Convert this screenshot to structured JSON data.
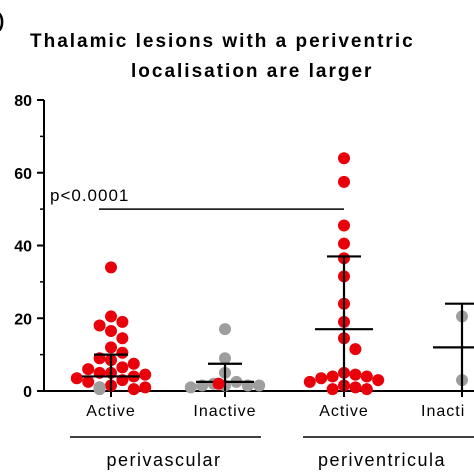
{
  "chart_data": {
    "type": "scatter",
    "panel_label": ")",
    "title_lines": [
      "Thalamic lesions with a periventric",
      "localisation are larger"
    ],
    "ylim": [
      0,
      80
    ],
    "yticks": [
      0,
      20,
      40,
      60,
      80
    ],
    "categories": [
      "Active",
      "Inactive",
      "Active",
      "Inacti"
    ],
    "groups": [
      {
        "label": "perivascular",
        "span": [
          0,
          1
        ]
      },
      {
        "label": "periventricula",
        "span": [
          2,
          3
        ]
      }
    ],
    "annotation": {
      "text": "p<0.0001",
      "from": 0,
      "to": 2,
      "y": 50
    },
    "colors": {
      "active": "#e8000b",
      "inactive": "#9e9e9e",
      "axis": "#000000"
    },
    "series": [
      {
        "category": 0,
        "color_key": "active",
        "mean": 4,
        "upper": 10,
        "lower": 0,
        "points": [
          34,
          20.5,
          19,
          18,
          16.5,
          14.5,
          12,
          10.5,
          9,
          8.5,
          7.5,
          6.5,
          6,
          5,
          5,
          4.5,
          4,
          3.5,
          3,
          2.5,
          2,
          1.5,
          1,
          1,
          1,
          0.5,
          0.5,
          0.5,
          0.5,
          0.5,
          0.5,
          0.5
        ]
      },
      {
        "category": 1,
        "color_key": "inactive",
        "mean": 2.5,
        "upper": 7.5,
        "lower": 0,
        "points": [
          17,
          9,
          5,
          2.5,
          2,
          1.5,
          1.5,
          1.5,
          1.5,
          1,
          1,
          1,
          1,
          0.5,
          0.5
        ]
      },
      {
        "category": 2,
        "color_key": "active",
        "mean": 17,
        "upper": 37,
        "lower": 0,
        "points": [
          64,
          57.5,
          45.5,
          40.5,
          36.5,
          31.5,
          24,
          19,
          14.5,
          11.5,
          5,
          4.5,
          4,
          4,
          3.5,
          3,
          2.5,
          2,
          1.5,
          1,
          0.5,
          0.5
        ]
      },
      {
        "category": 3,
        "color_key": "inactive",
        "mean": 12,
        "upper": 24,
        "lower": 0,
        "points": [
          20.5,
          3
        ]
      }
    ]
  }
}
